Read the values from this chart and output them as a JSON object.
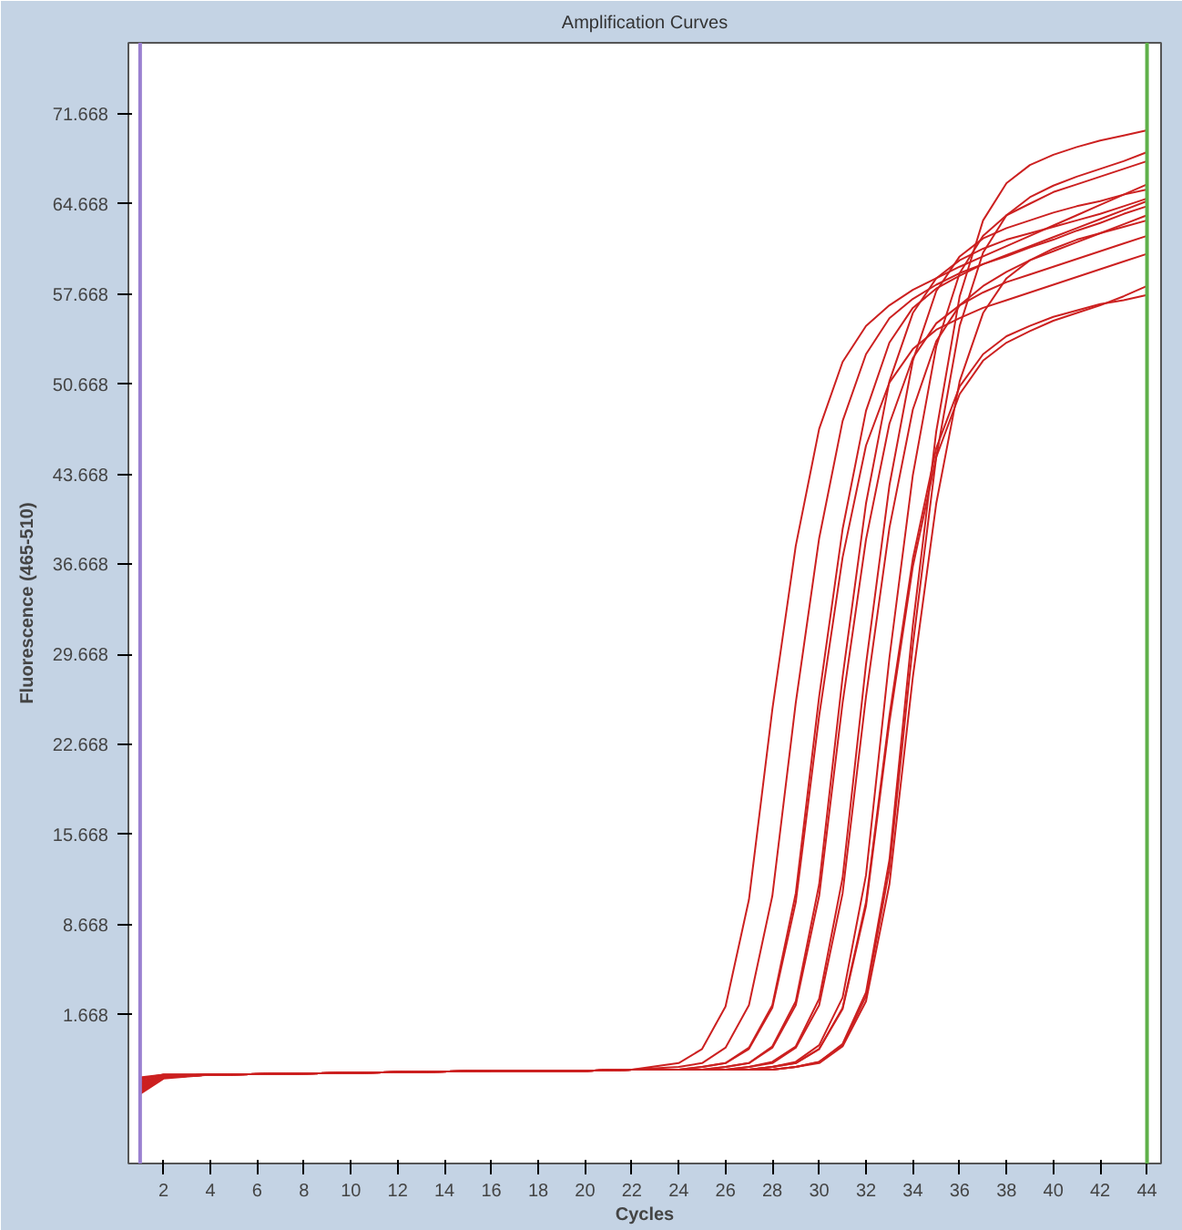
{
  "chart_data": {
    "type": "line",
    "title": "Amplification Curves",
    "xlabel": "Cycles",
    "ylabel": "Fluorescence (465-510)",
    "x": [
      1,
      2,
      4,
      8,
      12,
      16,
      20,
      22,
      24,
      25,
      26,
      27,
      28,
      29,
      30,
      31,
      32,
      33,
      34,
      35,
      36,
      37,
      38,
      39,
      40,
      41,
      42,
      43,
      44
    ],
    "xlim": [
      0.5,
      44.6
    ],
    "ylim": [
      -9.9,
      77.2
    ],
    "xticks": [
      2,
      4,
      6,
      8,
      10,
      12,
      14,
      16,
      18,
      20,
      22,
      24,
      26,
      28,
      30,
      32,
      34,
      36,
      38,
      40,
      42,
      44
    ],
    "yticks": [
      1.668,
      8.668,
      15.668,
      22.668,
      29.668,
      36.668,
      43.668,
      50.668,
      57.668,
      64.668,
      71.668
    ],
    "ref_lines": [
      {
        "axis": "x",
        "value": 1,
        "color": "#9a80d0"
      },
      {
        "axis": "x",
        "value": 44,
        "color": "#5fb04a"
      }
    ],
    "series": [
      {
        "color": "#cc2020",
        "values": [
          -3.8,
          -3.1,
          -3.0,
          -2.9,
          -2.8,
          -2.7,
          -2.7,
          -2.6,
          -2.1,
          -1.0,
          2.3,
          10.6,
          25.4,
          38.1,
          47.2,
          52.4,
          55.2,
          56.8,
          58.0,
          58.9,
          59.8,
          60.6,
          61.4,
          62.2,
          63.0,
          63.8,
          64.6,
          65.4,
          66.2
        ]
      },
      {
        "color": "#cc2020",
        "values": [
          -3.3,
          -3.0,
          -3.0,
          -2.9,
          -2.8,
          -2.7,
          -2.7,
          -2.6,
          -2.4,
          -2.1,
          -0.9,
          2.4,
          10.9,
          25.9,
          38.7,
          47.8,
          53.0,
          55.8,
          57.3,
          58.4,
          59.3,
          60.0,
          60.7,
          61.4,
          62.1,
          62.8,
          63.5,
          64.2,
          64.9
        ]
      },
      {
        "color": "#cc2020",
        "values": [
          -4.1,
          -3.2,
          -3.0,
          -2.9,
          -2.8,
          -2.7,
          -2.7,
          -2.6,
          -2.6,
          -2.4,
          -2.1,
          -1.0,
          2.2,
          10.4,
          24.9,
          37.2,
          45.9,
          50.8,
          53.4,
          54.9,
          55.8,
          56.6,
          57.2,
          57.8,
          58.4,
          59.0,
          59.6,
          60.2,
          60.8
        ]
      },
      {
        "color": "#cc2020",
        "values": [
          -3.5,
          -3.1,
          -3.0,
          -2.9,
          -2.8,
          -2.7,
          -2.7,
          -2.6,
          -2.6,
          -2.4,
          -2.1,
          -0.9,
          2.4,
          11.1,
          26.4,
          39.4,
          48.6,
          53.9,
          56.6,
          58.1,
          59.1,
          60.0,
          60.6,
          61.3,
          61.9,
          62.6,
          63.2,
          63.9,
          64.5
        ]
      },
      {
        "color": "#cc2020",
        "values": [
          -4.4,
          -3.2,
          -3.0,
          -2.9,
          -2.8,
          -2.7,
          -2.7,
          -2.6,
          -2.6,
          -2.6,
          -2.4,
          -2.1,
          -0.9,
          2.4,
          10.9,
          25.9,
          38.6,
          47.6,
          52.7,
          55.4,
          56.8,
          57.8,
          58.6,
          59.2,
          59.8,
          60.4,
          61.0,
          61.6,
          62.2
        ]
      },
      {
        "color": "#cc2020",
        "values": [
          -3.6,
          -3.1,
          -3.0,
          -2.9,
          -2.8,
          -2.7,
          -2.7,
          -2.6,
          -2.6,
          -2.6,
          -2.4,
          -2.1,
          -0.8,
          2.7,
          11.8,
          27.9,
          41.4,
          50.9,
          56.2,
          58.9,
          60.3,
          61.2,
          61.9,
          62.4,
          62.9,
          63.4,
          63.9,
          64.5,
          65.1
        ]
      },
      {
        "color": "#cc2020",
        "values": [
          -4.2,
          -3.2,
          -3.0,
          -2.9,
          -2.8,
          -2.7,
          -2.7,
          -2.6,
          -2.6,
          -2.6,
          -2.6,
          -2.4,
          -2.1,
          -0.9,
          2.4,
          11.1,
          26.4,
          39.5,
          48.7,
          54.0,
          56.8,
          58.3,
          59.4,
          60.3,
          61.0,
          61.7,
          62.4,
          63.1,
          63.8
        ]
      },
      {
        "color": "#cc2020",
        "values": [
          -3.4,
          -3.0,
          -3.0,
          -2.9,
          -2.8,
          -2.7,
          -2.7,
          -2.6,
          -2.6,
          -2.6,
          -2.6,
          -2.4,
          -2.0,
          -0.8,
          2.9,
          12.3,
          28.9,
          42.8,
          52.5,
          57.9,
          60.6,
          62.0,
          62.8,
          63.4,
          64.0,
          64.5,
          64.9,
          65.4,
          65.8
        ]
      },
      {
        "color": "#cc2020",
        "values": [
          -4.0,
          -3.2,
          -3.0,
          -2.9,
          -2.8,
          -2.7,
          -2.7,
          -2.6,
          -2.6,
          -2.6,
          -2.6,
          -2.6,
          -2.4,
          -2.1,
          -1.0,
          2.2,
          10.4,
          24.9,
          37.1,
          45.7,
          50.5,
          53.0,
          54.4,
          55.2,
          55.9,
          56.4,
          56.9,
          57.2,
          57.6
        ]
      },
      {
        "color": "#cc2020",
        "values": [
          -3.7,
          -3.1,
          -3.0,
          -2.9,
          -2.8,
          -2.7,
          -2.7,
          -2.6,
          -2.6,
          -2.6,
          -2.6,
          -2.6,
          -2.4,
          -2.1,
          -1.0,
          2.1,
          10.1,
          24.4,
          36.5,
          45.0,
          49.9,
          52.5,
          53.9,
          54.8,
          55.6,
          56.2,
          56.8,
          57.5,
          58.3
        ]
      },
      {
        "color": "#cc2020",
        "values": [
          -3.2,
          -3.0,
          -3.0,
          -2.9,
          -2.8,
          -2.7,
          -2.7,
          -2.6,
          -2.6,
          -2.6,
          -2.6,
          -2.6,
          -2.4,
          -2.0,
          -0.7,
          3.0,
          12.5,
          29.4,
          43.6,
          53.6,
          59.3,
          62.2,
          63.8,
          64.7,
          65.6,
          66.2,
          66.8,
          67.4,
          68.0
        ]
      },
      {
        "color": "#cc2020",
        "values": [
          -4.3,
          -3.2,
          -3.0,
          -2.9,
          -2.8,
          -2.7,
          -2.7,
          -2.6,
          -2.6,
          -2.6,
          -2.6,
          -2.6,
          -2.6,
          -2.4,
          -2.0,
          -0.7,
          3.1,
          13.0,
          30.4,
          45.0,
          55.2,
          60.9,
          63.8,
          65.2,
          66.1,
          66.8,
          67.4,
          68.0,
          68.7
        ]
      },
      {
        "color": "#cc2020",
        "values": [
          -3.9,
          -3.1,
          -3.0,
          -2.9,
          -2.8,
          -2.7,
          -2.7,
          -2.6,
          -2.6,
          -2.6,
          -2.6,
          -2.6,
          -2.6,
          -2.4,
          -2.1,
          -0.8,
          2.7,
          11.8,
          27.9,
          41.4,
          50.9,
          56.2,
          58.9,
          60.3,
          61.2,
          61.9,
          62.4,
          62.9,
          63.4
        ]
      },
      {
        "color": "#cc2020",
        "values": [
          -4.5,
          -3.3,
          -3.0,
          -2.9,
          -2.8,
          -2.7,
          -2.7,
          -2.6,
          -2.6,
          -2.6,
          -2.6,
          -2.6,
          -2.6,
          -2.4,
          -2.0,
          -0.6,
          3.4,
          13.7,
          31.9,
          47.0,
          57.5,
          63.4,
          66.3,
          67.7,
          68.5,
          69.1,
          69.6,
          70.0,
          70.4
        ]
      }
    ]
  }
}
